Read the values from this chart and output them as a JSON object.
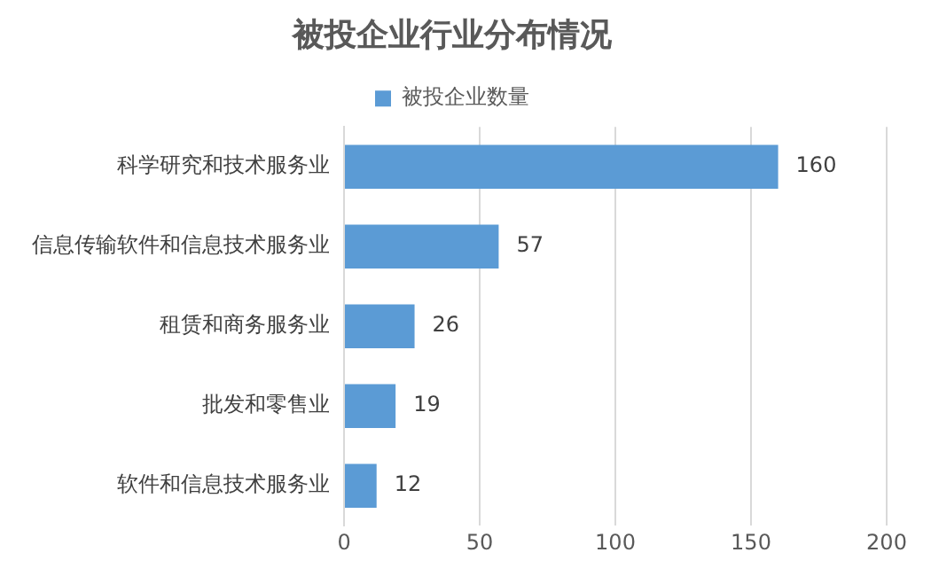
{
  "chart_data": {
    "type": "bar",
    "orientation": "horizontal",
    "title": "被投企业行业分布情况",
    "categories": [
      "科学研究和技术服务业",
      "信息传输软件和信息技术服务业",
      "租赁和商务服务业",
      "批发和零售业",
      "软件和信息技术服务业"
    ],
    "series": [
      {
        "name": "被投企业数量",
        "color": "#5b9bd5",
        "values": [
          160,
          57,
          26,
          19,
          12
        ]
      }
    ],
    "xlim": [
      0,
      200
    ],
    "xticks": [
      0,
      50,
      100,
      150,
      200
    ],
    "grid": "x",
    "legend": "top",
    "data_labels": true
  }
}
